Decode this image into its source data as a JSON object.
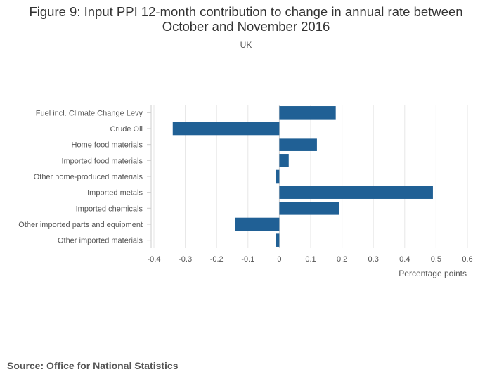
{
  "chart_data": {
    "type": "bar",
    "orientation": "horizontal",
    "title_line1": "Figure 9: Input PPI 12-month contribution to change in annual rate between",
    "title_line2": "October and November 2016",
    "subtitle": "UK",
    "xlabel": "Percentage points",
    "ylabel": "",
    "xlim": [
      -0.4,
      0.6
    ],
    "xticks": [
      -0.4,
      -0.3,
      -0.2,
      -0.1,
      0,
      0.1,
      0.2,
      0.3,
      0.4,
      0.5,
      0.6
    ],
    "xtick_labels": [
      "-0.4",
      "-0.3",
      "-0.2",
      "-0.1",
      "0",
      "0.1",
      "0.2",
      "0.3",
      "0.4",
      "0.5",
      "0.6"
    ],
    "grid": true,
    "bar_color": "#206095",
    "categories": [
      "Fuel incl. Climate Change Levy",
      "Crude Oil",
      "Home food materials",
      "Imported food materials",
      "Other home-produced materials",
      "Imported metals",
      "Imported chemicals",
      "Other imported parts and equipment",
      "Other imported materials"
    ],
    "values": [
      0.18,
      -0.34,
      0.12,
      0.03,
      -0.01,
      0.49,
      0.19,
      -0.14,
      -0.01
    ]
  },
  "source": "Source: Office for National Statistics"
}
